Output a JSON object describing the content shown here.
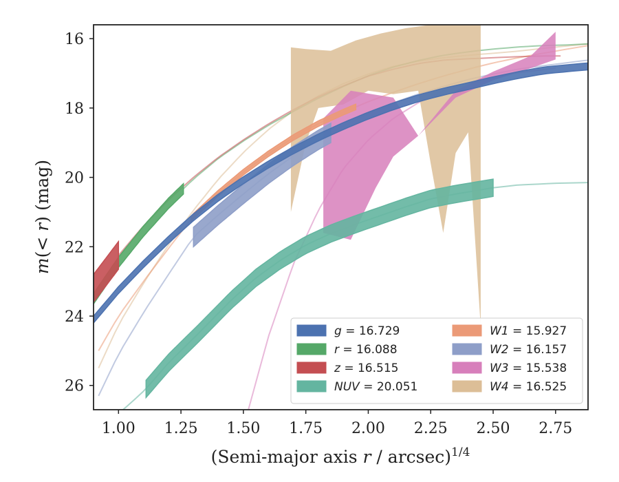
{
  "chart_data": {
    "type": "line",
    "title": "",
    "xlabel": {
      "main": "(Semi-major axis ",
      "var": "r",
      "rest": " / arcsec)",
      "sup": "1/4"
    },
    "ylabel": {
      "var1": "m",
      "mid": "(< ",
      "var2": "r",
      "rest": ") (mag)"
    },
    "xlim": [
      0.9,
      2.88
    ],
    "ylim": [
      26.7,
      15.6
    ],
    "y_inverted": true,
    "grid": false,
    "legend_position": "lower-right",
    "xticks": [
      1.0,
      1.25,
      1.5,
      1.75,
      2.0,
      2.25,
      2.5,
      2.75
    ],
    "xtick_labels": [
      "1.00",
      "1.25",
      "1.50",
      "1.75",
      "2.00",
      "2.25",
      "2.50",
      "2.75"
    ],
    "yticks": [
      16,
      18,
      20,
      22,
      24,
      26
    ],
    "ytick_labels": [
      "16",
      "18",
      "20",
      "22",
      "24",
      "26"
    ],
    "series": [
      {
        "key": "g",
        "legend": {
          "var": "g",
          "value": " = 16.729"
        },
        "color": "#4c72b0",
        "x": [
          0.9,
          1.0,
          1.1,
          1.2,
          1.3,
          1.4,
          1.5,
          1.6,
          1.7,
          1.8,
          1.9,
          2.0,
          2.1,
          2.2,
          2.3,
          2.4,
          2.5,
          2.6,
          2.7,
          2.8,
          2.88
        ],
        "y": [
          24.1,
          23.25,
          22.5,
          21.8,
          21.15,
          20.58,
          20.08,
          19.63,
          19.22,
          18.85,
          18.52,
          18.22,
          17.95,
          17.72,
          17.53,
          17.37,
          17.2,
          17.05,
          16.92,
          16.85,
          16.8
        ],
        "band_x": [
          0.9,
          2.88
        ],
        "band_halfwidth": 0.1,
        "fade_x": [
          2.88,
          2.88
        ]
      },
      {
        "key": "r",
        "legend": {
          "var": "r",
          "value": " = 16.088"
        },
        "color": "#55a868",
        "x": [
          0.9,
          1.0,
          1.1,
          1.2,
          1.3,
          1.4,
          1.5,
          1.6,
          1.7,
          1.8,
          1.9,
          2.0,
          2.1,
          2.2,
          2.3,
          2.4,
          2.5,
          2.6,
          2.7,
          2.8,
          2.88
        ],
        "y": [
          23.5,
          22.45,
          21.55,
          20.75,
          20.05,
          19.45,
          18.95,
          18.5,
          18.1,
          17.72,
          17.38,
          17.07,
          16.82,
          16.63,
          16.48,
          16.38,
          16.3,
          16.24,
          16.2,
          16.18,
          16.15
        ],
        "band_x": [
          0.9,
          1.26
        ],
        "band_halfwidth": 0.15,
        "fade_x": [
          1.26,
          2.88
        ]
      },
      {
        "key": "z",
        "legend": {
          "var": "z",
          "value": " = 16.515"
        },
        "color": "#c44e52",
        "x": [
          0.9,
          1.0,
          1.1,
          1.2,
          1.3,
          1.4,
          1.5,
          1.6,
          1.7,
          1.8,
          1.9,
          2.0,
          2.1,
          2.2,
          2.3,
          2.4,
          2.5,
          2.6,
          2.7,
          2.77
        ],
        "y": [
          23.2,
          22.25,
          21.4,
          20.65,
          20.0,
          19.42,
          18.92,
          18.46,
          18.05,
          17.68,
          17.36,
          17.08,
          16.88,
          16.72,
          16.62,
          16.58,
          16.55,
          16.52,
          16.5,
          16.5
        ],
        "band_x": [
          0.9,
          1.0
        ],
        "band_halfwidth": 0.4,
        "fade_x": [
          1.0,
          2.77
        ]
      },
      {
        "key": "NUV",
        "legend": {
          "var": "NUV",
          "value": " = 20.051"
        },
        "color": "#64b5a0",
        "x": [
          0.97,
          1.05,
          1.11,
          1.2,
          1.32,
          1.45,
          1.55,
          1.65,
          1.75,
          1.85,
          1.95,
          2.05,
          2.15,
          2.25,
          2.35,
          2.5,
          2.6,
          2.75,
          2.88
        ],
        "y": [
          27.0,
          26.5,
          26.1,
          25.35,
          24.5,
          23.55,
          22.9,
          22.38,
          21.95,
          21.62,
          21.35,
          21.1,
          20.85,
          20.62,
          20.48,
          20.3,
          20.22,
          20.17,
          20.15
        ],
        "band_x": [
          1.11,
          2.5
        ],
        "band_halfwidth": 0.25,
        "fade_x": [
          0.97,
          2.88
        ]
      },
      {
        "key": "W1",
        "legend": {
          "var": "W1",
          "value": " = 15.927"
        },
        "color": "#eb9a77",
        "x": [
          0.92,
          1.0,
          1.1,
          1.2,
          1.3,
          1.4,
          1.5,
          1.6,
          1.7,
          1.8,
          1.9,
          2.0,
          2.1,
          2.2,
          2.3,
          2.4,
          2.5,
          2.6,
          2.7,
          2.88
        ],
        "y": [
          25.0,
          24.0,
          23.0,
          22.05,
          21.12,
          20.45,
          19.85,
          19.32,
          18.85,
          18.45,
          18.12,
          17.82,
          17.55,
          17.3,
          17.08,
          16.88,
          16.7,
          16.55,
          16.42,
          16.2
        ],
        "band_x": [
          1.29,
          1.95
        ],
        "band_halfwidth": 0.08,
        "fade_x": [
          0.92,
          2.88
        ]
      },
      {
        "key": "W2",
        "legend": {
          "var": "W2",
          "value": " = 16.157"
        },
        "color": "#8e9ec8",
        "x": [
          0.92,
          1.0,
          1.1,
          1.2,
          1.3,
          1.4,
          1.5,
          1.6,
          1.7,
          1.8,
          1.9,
          2.0,
          2.1,
          2.2,
          2.3,
          2.4,
          2.5,
          2.6,
          2.7,
          2.88
        ],
        "y": [
          26.3,
          25.1,
          23.9,
          22.8,
          21.72,
          21.08,
          20.48,
          19.9,
          19.38,
          18.92,
          18.52,
          18.16,
          17.85,
          17.6,
          17.38,
          17.18,
          17.02,
          16.88,
          16.78,
          16.62
        ],
        "band_x": [
          1.3,
          1.85
        ],
        "band_halfwidth": 0.28,
        "fade_x": [
          0.92,
          2.88
        ]
      },
      {
        "key": "W3",
        "legend": {
          "var": "W3",
          "value": " = 15.538"
        },
        "color": "#d77fbb",
        "x": [
          1.52,
          1.6,
          1.7,
          1.8,
          1.9,
          2.0,
          2.1,
          2.2,
          2.3,
          2.4,
          2.5,
          2.6,
          2.75
        ],
        "y": [
          26.7,
          24.6,
          22.5,
          20.95,
          19.75,
          18.92,
          18.3,
          17.85,
          17.52,
          17.28,
          17.1,
          16.98,
          16.85
        ],
        "fade_x": [
          1.52,
          2.75
        ],
        "band_top_x": [
          1.82,
          1.93,
          2.1,
          2.2,
          2.35,
          2.5,
          2.65,
          2.75
        ],
        "band_top_y": [
          18.3,
          17.5,
          17.7,
          18.8,
          17.5,
          16.95,
          16.5,
          15.8
        ],
        "band_bot_x": [
          2.75,
          2.65,
          2.5,
          2.35,
          2.2,
          2.1,
          2.03,
          1.93,
          1.82
        ],
        "band_bot_y": [
          16.6,
          16.85,
          17.2,
          17.7,
          18.8,
          19.4,
          20.3,
          21.8,
          21.6
        ]
      },
      {
        "key": "W4",
        "legend": {
          "var": "W4",
          "value": " = 16.525"
        },
        "color": "#dcbe97",
        "x": [
          0.92,
          1.0,
          1.1,
          1.2,
          1.3,
          1.4,
          1.5,
          1.6,
          1.7,
          1.8,
          1.9,
          2.0,
          2.1,
          2.2,
          2.3,
          2.4,
          2.5,
          2.6,
          2.7,
          2.88
        ],
        "y": [
          25.5,
          24.25,
          23.05,
          21.95,
          20.95,
          20.05,
          19.28,
          18.62,
          18.08,
          17.65,
          17.3,
          17.02,
          16.8,
          16.65,
          16.55,
          16.48,
          16.42,
          16.36,
          16.28,
          16.15
        ],
        "fade_x": [
          0.92,
          2.88
        ],
        "band_top_x": [
          1.69,
          1.75,
          1.85,
          1.95,
          2.05,
          2.15,
          2.25,
          2.35,
          2.45
        ],
        "band_top_y": [
          16.25,
          16.3,
          16.35,
          16.05,
          15.85,
          15.7,
          15.6,
          15.6,
          15.6
        ],
        "band_bot_x": [
          2.45,
          2.4,
          2.35,
          2.3,
          2.25,
          2.2,
          2.1,
          2.0,
          1.9,
          1.8,
          1.75,
          1.69
        ],
        "band_bot_y": [
          24.3,
          18.7,
          19.3,
          21.6,
          19.6,
          17.5,
          17.6,
          17.5,
          17.9,
          18.0,
          19.0,
          21.0
        ]
      }
    ]
  }
}
